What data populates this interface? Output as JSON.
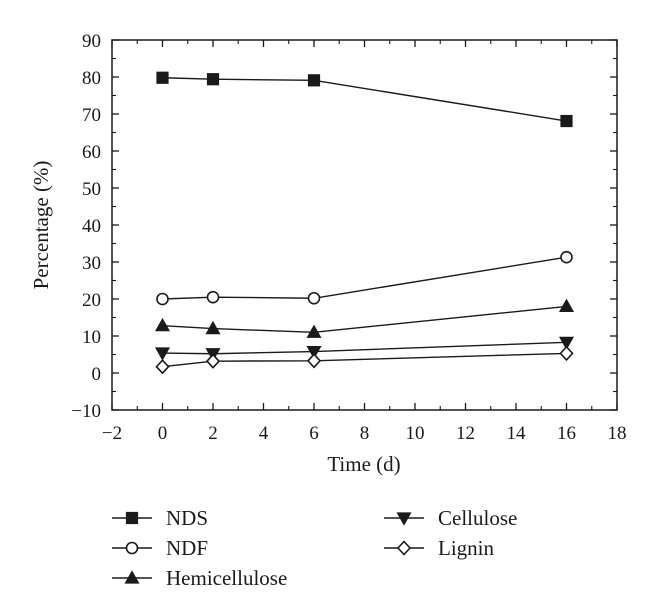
{
  "chart_data": {
    "type": "line",
    "xlabel": "Time (d)",
    "ylabel": "Percentage (%)",
    "xlim": [
      -2,
      18
    ],
    "ylim": [
      -10,
      90
    ],
    "xticks": [
      -2,
      0,
      2,
      4,
      6,
      8,
      10,
      12,
      14,
      16,
      18
    ],
    "yticks": [
      -10,
      0,
      10,
      20,
      30,
      40,
      50,
      60,
      70,
      80,
      90
    ],
    "xtick_labels": [
      "−2",
      "0",
      "2",
      "4",
      "6",
      "8",
      "10",
      "12",
      "14",
      "16",
      "18"
    ],
    "ytick_labels": [
      "−10",
      "0",
      "10",
      "20",
      "30",
      "40",
      "50",
      "60",
      "70",
      "80",
      "90"
    ],
    "grid": false,
    "legend_position": "bottom",
    "x": [
      0,
      2,
      6,
      16
    ],
    "series": [
      {
        "name": "NDS",
        "marker": "square-filled",
        "values": [
          79.8,
          79.4,
          79.1,
          68.1
        ]
      },
      {
        "name": "NDF",
        "marker": "circle-open",
        "values": [
          20.0,
          20.5,
          20.2,
          31.3
        ]
      },
      {
        "name": "Hemicellulose",
        "marker": "triangle-up-filled",
        "values": [
          12.8,
          12.0,
          11.0,
          18.0
        ]
      },
      {
        "name": "Cellulose",
        "marker": "triangle-down-filled",
        "values": [
          5.4,
          5.2,
          5.8,
          8.3
        ]
      },
      {
        "name": "Lignin",
        "marker": "diamond-open",
        "values": [
          1.7,
          3.2,
          3.3,
          5.3
        ]
      }
    ],
    "colors": {
      "line": "#1a1a1a",
      "marker_fill": "#1a1a1a",
      "open_marker_fill": "#ffffff"
    }
  }
}
